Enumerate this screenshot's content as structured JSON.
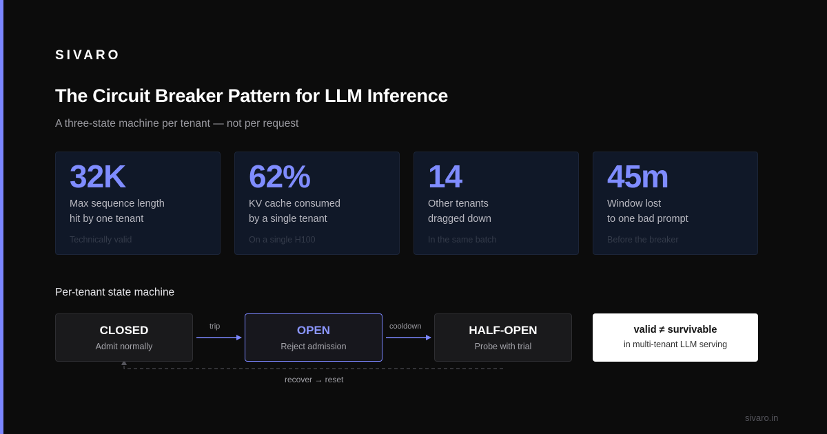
{
  "brand": "SIVARO",
  "title": "The Circuit Breaker Pattern for LLM Inference",
  "subtitle": "A three-state machine per tenant — not per request",
  "stats": [
    {
      "value": "32K",
      "label_line1": "Max sequence length",
      "label_line2": "hit by one tenant",
      "note": "Technically valid"
    },
    {
      "value": "62%",
      "label_line1": "KV cache consumed",
      "label_line2": "by a single tenant",
      "note": "On a single H100"
    },
    {
      "value": "14",
      "label_line1": "Other tenants",
      "label_line2": "dragged down",
      "note": "In the same batch"
    },
    {
      "value": "45m",
      "label_line1": "Window lost",
      "label_line2": "to one bad prompt",
      "note": "Before the breaker"
    }
  ],
  "state_machine": {
    "label": "Per-tenant state machine",
    "states": [
      {
        "name": "CLOSED",
        "desc": "Admit normally"
      },
      {
        "name": "OPEN",
        "desc": "Reject admission"
      },
      {
        "name": "HALF-OPEN",
        "desc": "Probe with trial"
      }
    ],
    "transitions": {
      "trip": "trip",
      "cooldown": "cooldown",
      "recover": "recover → reset"
    }
  },
  "callout": {
    "main": "valid ≠ survivable",
    "sub": "in multi-tenant LLM serving"
  },
  "footer": "sivaro.in",
  "colors": {
    "accent": "#7b86ff",
    "background": "#0c0c0c",
    "card": "#101828"
  }
}
